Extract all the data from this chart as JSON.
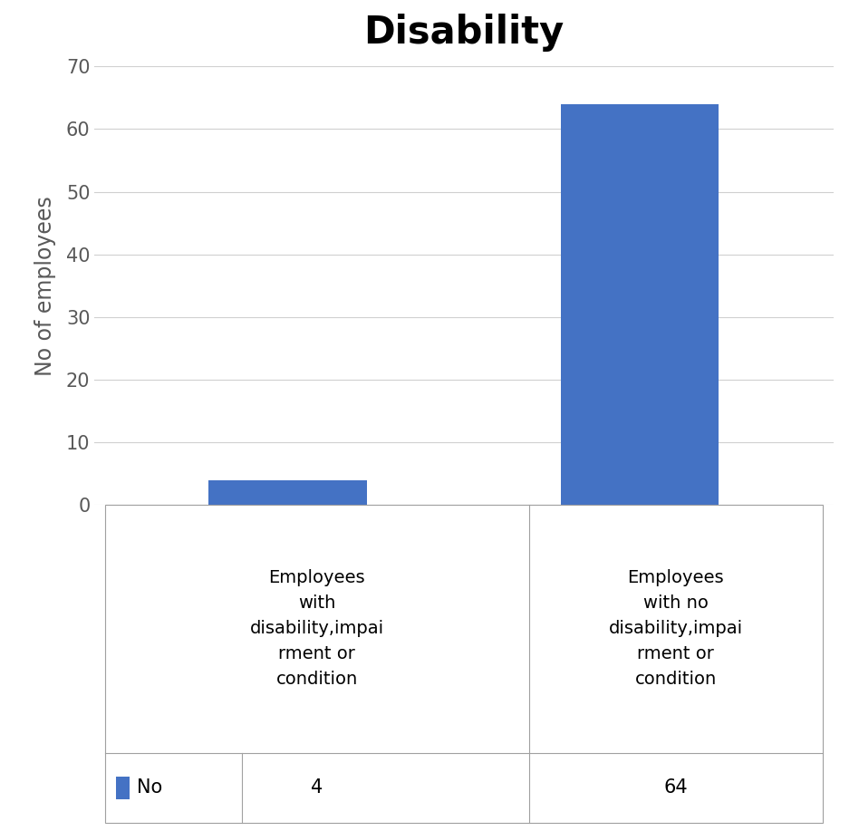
{
  "title": "Disability",
  "ylabel": "No of employees",
  "categories": [
    "Employees\nwith\ndisability,impai\nrment or\ncondition",
    "Employees\nwith no\ndisability,impai\nrment or\ncondition"
  ],
  "values": [
    4,
    64
  ],
  "bar_color": "#4472C4",
  "ylim": [
    0,
    70
  ],
  "yticks": [
    0,
    10,
    20,
    30,
    40,
    50,
    60,
    70
  ],
  "legend_label": "No",
  "table_values": [
    "4",
    "64"
  ],
  "title_fontsize": 30,
  "ylabel_fontsize": 17,
  "tick_fontsize": 15,
  "table_label_fontsize": 14,
  "table_value_fontsize": 15,
  "plot_bg_color": "#ffffff",
  "grid_color": "#d0d0d0",
  "bar_width": 0.45
}
